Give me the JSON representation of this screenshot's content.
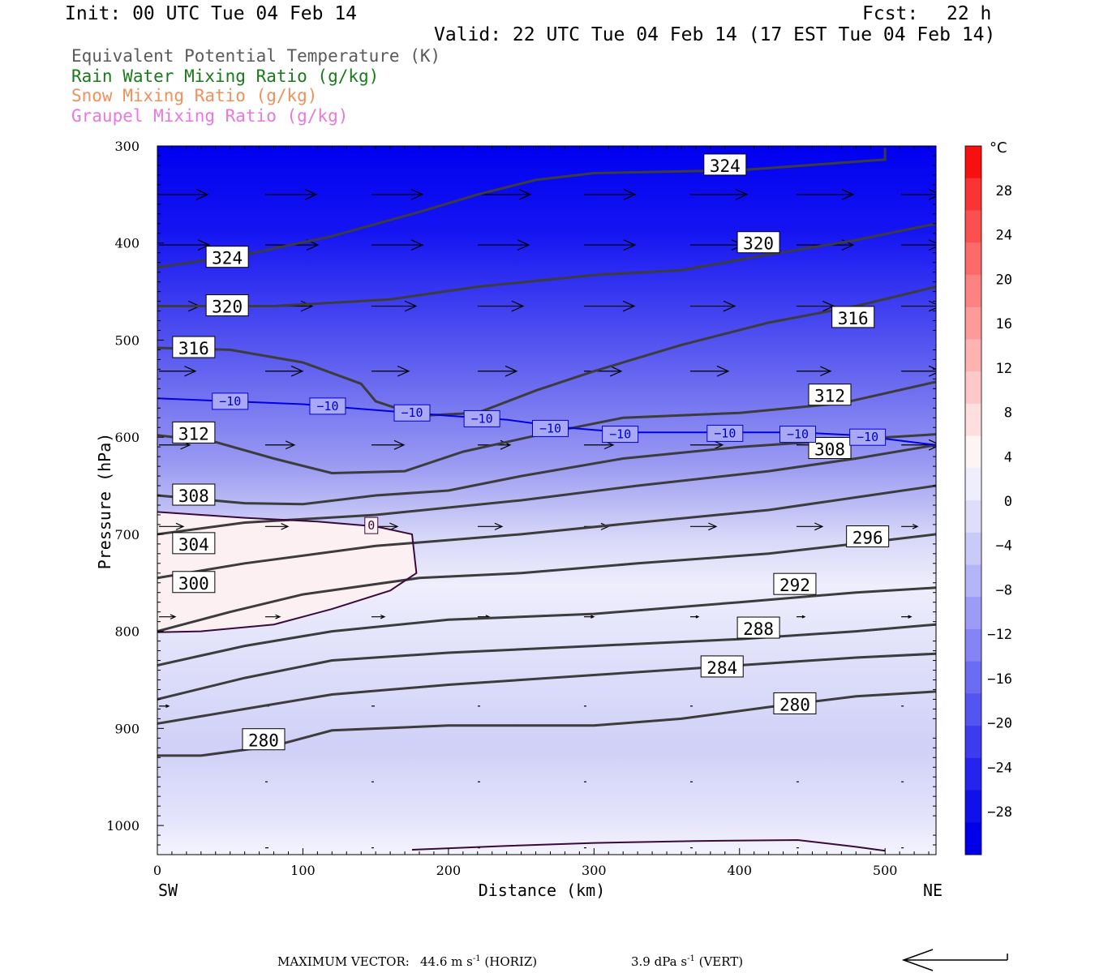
{
  "header": {
    "init": "Init: 00 UTC Tue 04 Feb 14",
    "fcst_label": "Fcst:",
    "fcst_value": "22 h",
    "valid": "Valid: 22 UTC Tue 04 Feb 14 (17 EST Tue 04 Feb 14)"
  },
  "legend": [
    {
      "text": "Equivalent Potential Temperature (K)",
      "color": "#5a5a5a"
    },
    {
      "text": "Rain Water Mixing Ratio (g/kg)",
      "color": "#1a7a1a"
    },
    {
      "text": "Snow Mixing Ratio (g/kg)",
      "color": "#f0905a"
    },
    {
      "text": "Graupel Mixing Ratio (g/kg)",
      "color": "#e878e0"
    }
  ],
  "chart_data": {
    "type": "cross-section",
    "xlabel": "Distance (km)",
    "ylabel": "Pressure (hPa)",
    "x_ticks": [
      "0",
      "100",
      "200",
      "300",
      "400",
      "500"
    ],
    "y_ticks": [
      "300",
      "400",
      "500",
      "600",
      "700",
      "800",
      "900",
      "1000"
    ],
    "xlim": [
      0,
      535
    ],
    "ylim": [
      1030,
      300
    ],
    "left_end_label": "SW",
    "right_end_label": "NE",
    "colorbar": {
      "unit": "°C",
      "labels": [
        "28",
        "24",
        "20",
        "16",
        "12",
        "8",
        "4",
        "0",
        "−4",
        "−8",
        "−12",
        "−16",
        "−20",
        "−24",
        "−28"
      ]
    },
    "theta_e_contours": [
      {
        "level": 324,
        "points": [
          [
            0,
            425
          ],
          [
            60,
            412
          ],
          [
            120,
            393
          ],
          [
            180,
            368
          ],
          [
            220,
            350
          ],
          [
            260,
            335
          ],
          [
            300,
            328
          ],
          [
            400,
            325
          ],
          [
            500,
            314
          ],
          [
            500,
            302
          ]
        ]
      },
      {
        "level": 320,
        "points": [
          [
            0,
            465
          ],
          [
            80,
            465
          ],
          [
            160,
            458
          ],
          [
            220,
            445
          ],
          [
            300,
            433
          ],
          [
            360,
            428
          ],
          [
            420,
            412
          ],
          [
            480,
            397
          ],
          [
            535,
            380
          ]
        ]
      },
      {
        "level": 316,
        "points": [
          [
            0,
            508
          ],
          [
            50,
            510
          ],
          [
            100,
            523
          ],
          [
            140,
            545
          ],
          [
            150,
            563
          ],
          [
            180,
            578
          ],
          [
            220,
            575
          ],
          [
            260,
            552
          ],
          [
            300,
            532
          ],
          [
            360,
            505
          ],
          [
            420,
            482
          ],
          [
            480,
            465
          ],
          [
            535,
            445
          ]
        ]
      },
      {
        "level": 312,
        "points": [
          [
            0,
            598
          ],
          [
            40,
            605
          ],
          [
            80,
            622
          ],
          [
            120,
            637
          ],
          [
            170,
            635
          ],
          [
            210,
            615
          ],
          [
            270,
            595
          ],
          [
            320,
            580
          ],
          [
            400,
            575
          ],
          [
            470,
            565
          ],
          [
            535,
            543
          ]
        ]
      },
      {
        "level": 308,
        "points": [
          [
            0,
            660
          ],
          [
            60,
            668
          ],
          [
            100,
            669
          ],
          [
            150,
            660
          ],
          [
            200,
            655
          ],
          [
            250,
            640
          ],
          [
            320,
            622
          ],
          [
            400,
            610
          ],
          [
            470,
            603
          ],
          [
            535,
            597
          ]
        ]
      },
      {
        "level": 304,
        "points": [
          [
            0,
            700
          ],
          [
            60,
            688
          ],
          [
            150,
            680
          ],
          [
            250,
            665
          ],
          [
            330,
            650
          ],
          [
            420,
            635
          ],
          [
            480,
            622
          ],
          [
            535,
            608
          ]
        ]
      },
      {
        "level": 300,
        "points": [
          [
            0,
            745
          ],
          [
            60,
            730
          ],
          [
            150,
            712
          ],
          [
            250,
            700
          ],
          [
            330,
            688
          ],
          [
            420,
            675
          ],
          [
            480,
            662
          ],
          [
            535,
            650
          ]
        ]
      },
      {
        "level": 296,
        "points": [
          [
            0,
            800
          ],
          [
            50,
            780
          ],
          [
            100,
            762
          ],
          [
            180,
            745
          ],
          [
            250,
            740
          ],
          [
            330,
            730
          ],
          [
            420,
            720
          ],
          [
            490,
            708
          ],
          [
            535,
            700
          ]
        ]
      },
      {
        "level": 292,
        "points": [
          [
            0,
            835
          ],
          [
            60,
            815
          ],
          [
            120,
            800
          ],
          [
            200,
            788
          ],
          [
            300,
            782
          ],
          [
            400,
            770
          ],
          [
            480,
            760
          ],
          [
            535,
            755
          ]
        ]
      },
      {
        "level": 288,
        "points": [
          [
            0,
            870
          ],
          [
            60,
            848
          ],
          [
            120,
            830
          ],
          [
            200,
            822
          ],
          [
            300,
            815
          ],
          [
            400,
            808
          ],
          [
            480,
            800
          ],
          [
            535,
            793
          ]
        ]
      },
      {
        "level": 284,
        "points": [
          [
            0,
            895
          ],
          [
            60,
            880
          ],
          [
            120,
            865
          ],
          [
            200,
            855
          ],
          [
            300,
            845
          ],
          [
            400,
            835
          ],
          [
            480,
            827
          ],
          [
            535,
            823
          ]
        ]
      },
      {
        "level": 280,
        "points": [
          [
            0,
            928
          ],
          [
            30,
            928
          ],
          [
            80,
            918
          ],
          [
            120,
            902
          ],
          [
            200,
            897
          ],
          [
            300,
            897
          ],
          [
            360,
            890
          ],
          [
            420,
            878
          ],
          [
            480,
            867
          ],
          [
            535,
            862
          ]
        ]
      }
    ],
    "theta_e_labels": [
      {
        "text": "324",
        "x": 390,
        "p": 320
      },
      {
        "text": "324",
        "x": 48,
        "p": 415
      },
      {
        "text": "320",
        "x": 413,
        "p": 400
      },
      {
        "text": "320",
        "x": 48,
        "p": 465
      },
      {
        "text": "316",
        "x": 478,
        "p": 477
      },
      {
        "text": "316",
        "x": 25,
        "p": 508
      },
      {
        "text": "312",
        "x": 462,
        "p": 557
      },
      {
        "text": "312",
        "x": 25,
        "p": 596
      },
      {
        "text": "308",
        "x": 462,
        "p": 612
      },
      {
        "text": "308",
        "x": 25,
        "p": 660
      },
      {
        "text": "304",
        "x": 25,
        "p": 710
      },
      {
        "text": "300",
        "x": 25,
        "p": 750
      },
      {
        "text": "296",
        "x": 488,
        "p": 703
      },
      {
        "text": "292",
        "x": 438,
        "p": 752
      },
      {
        "text": "288",
        "x": 413,
        "p": 797
      },
      {
        "text": "284",
        "x": 388,
        "p": 837
      },
      {
        "text": "280",
        "x": 438,
        "p": 875
      },
      {
        "text": "280",
        "x": 73,
        "p": 912
      }
    ],
    "isotherms": [
      {
        "level": -10,
        "label": "−10",
        "color": "#0000e0",
        "points": [
          [
            0,
            560
          ],
          [
            50,
            563
          ],
          [
            100,
            566
          ],
          [
            150,
            572
          ],
          [
            200,
            578
          ],
          [
            240,
            582
          ],
          [
            280,
            590
          ],
          [
            320,
            595
          ],
          [
            380,
            595
          ],
          [
            440,
            595
          ],
          [
            480,
            598
          ],
          [
            535,
            608
          ]
        ]
      },
      {
        "level": 0,
        "label": "0",
        "color": "#3a0a3a",
        "points": [
          [
            0,
            677
          ],
          [
            60,
            683
          ],
          [
            110,
            687
          ],
          [
            150,
            692
          ],
          [
            175,
            700
          ],
          [
            178,
            740
          ],
          [
            160,
            758
          ],
          [
            120,
            777
          ],
          [
            80,
            793
          ],
          [
            30,
            800
          ],
          [
            0,
            801
          ]
        ]
      }
    ],
    "isotherm_labels": [
      {
        "text": "−10",
        "x": 50,
        "p": 563
      },
      {
        "text": "−10",
        "x": 117,
        "p": 568
      },
      {
        "text": "−10",
        "x": 175,
        "p": 575
      },
      {
        "text": "−10",
        "x": 223,
        "p": 581
      },
      {
        "text": "−10",
        "x": 270,
        "p": 591
      },
      {
        "text": "−10",
        "x": 318,
        "p": 597
      },
      {
        "text": "−10",
        "x": 390,
        "p": 596
      },
      {
        "text": "−10",
        "x": 440,
        "p": 597
      },
      {
        "text": "−10",
        "x": 488,
        "p": 600
      },
      {
        "text": "0",
        "x": 147,
        "p": 691
      }
    ],
    "near_surface_line": [
      [
        175,
        1025
      ],
      [
        240,
        1021
      ],
      [
        300,
        1018
      ],
      [
        370,
        1016
      ],
      [
        440,
        1015
      ],
      [
        480,
        1022
      ],
      [
        500,
        1026
      ]
    ],
    "wind_vectors": [
      {
        "x": 0,
        "p": 350,
        "len": 60
      },
      {
        "x": 73,
        "p": 350,
        "len": 63
      },
      {
        "x": 146,
        "p": 350,
        "len": 63
      },
      {
        "x": 219,
        "p": 350,
        "len": 65
      },
      {
        "x": 292,
        "p": 350,
        "len": 63
      },
      {
        "x": 365,
        "p": 350,
        "len": 70
      },
      {
        "x": 438,
        "p": 350,
        "len": 70
      },
      {
        "x": 510,
        "p": 350,
        "len": 48
      },
      {
        "x": 0,
        "p": 402,
        "len": 62
      },
      {
        "x": 73,
        "p": 402,
        "len": 65
      },
      {
        "x": 146,
        "p": 402,
        "len": 63
      },
      {
        "x": 219,
        "p": 402,
        "len": 63
      },
      {
        "x": 292,
        "p": 402,
        "len": 63
      },
      {
        "x": 365,
        "p": 402,
        "len": 65
      },
      {
        "x": 438,
        "p": 402,
        "len": 70
      },
      {
        "x": 510,
        "p": 402,
        "len": 48
      },
      {
        "x": 0,
        "p": 465,
        "len": 50
      },
      {
        "x": 73,
        "p": 465,
        "len": 58
      },
      {
        "x": 146,
        "p": 465,
        "len": 55
      },
      {
        "x": 219,
        "p": 465,
        "len": 56
      },
      {
        "x": 292,
        "p": 465,
        "len": 62
      },
      {
        "x": 365,
        "p": 465,
        "len": 55
      },
      {
        "x": 438,
        "p": 465,
        "len": 46
      },
      {
        "x": 510,
        "p": 465,
        "len": 48
      },
      {
        "x": 0,
        "p": 532,
        "len": 45
      },
      {
        "x": 73,
        "p": 532,
        "len": 46
      },
      {
        "x": 146,
        "p": 532,
        "len": 46
      },
      {
        "x": 219,
        "p": 532,
        "len": 48
      },
      {
        "x": 292,
        "p": 532,
        "len": 46
      },
      {
        "x": 365,
        "p": 532,
        "len": 47
      },
      {
        "x": 438,
        "p": 532,
        "len": 42
      },
      {
        "x": 510,
        "p": 532,
        "len": 48
      },
      {
        "x": 0,
        "p": 608,
        "len": 38
      },
      {
        "x": 73,
        "p": 608,
        "len": 36
      },
      {
        "x": 146,
        "p": 608,
        "len": 40
      },
      {
        "x": 219,
        "p": 608,
        "len": 40
      },
      {
        "x": 292,
        "p": 608,
        "len": 36
      },
      {
        "x": 365,
        "p": 608,
        "len": 40
      },
      {
        "x": 438,
        "p": 608,
        "len": 36
      },
      {
        "x": 510,
        "p": 608,
        "len": 48
      },
      {
        "x": 0,
        "p": 692,
        "len": 30
      },
      {
        "x": 73,
        "p": 692,
        "len": 28
      },
      {
        "x": 146,
        "p": 692,
        "len": 32
      },
      {
        "x": 219,
        "p": 692,
        "len": 30
      },
      {
        "x": 292,
        "p": 692,
        "len": 30
      },
      {
        "x": 365,
        "p": 692,
        "len": 32
      },
      {
        "x": 438,
        "p": 692,
        "len": 32
      },
      {
        "x": 510,
        "p": 692,
        "len": 20
      },
      {
        "x": 0,
        "p": 785,
        "len": 20
      },
      {
        "x": 73,
        "p": 785,
        "len": 18
      },
      {
        "x": 146,
        "p": 785,
        "len": 16
      },
      {
        "x": 219,
        "p": 785,
        "len": 14
      },
      {
        "x": 292,
        "p": 785,
        "len": 12
      },
      {
        "x": 365,
        "p": 785,
        "len": 10
      },
      {
        "x": 438,
        "p": 785,
        "len": 10
      },
      {
        "x": 510,
        "p": 785,
        "len": 12
      },
      {
        "x": 0,
        "p": 877,
        "len": 12
      },
      {
        "x": 73,
        "p": 877,
        "len": 5
      },
      {
        "x": 146,
        "p": 877,
        "len": 4
      },
      {
        "x": 219,
        "p": 877,
        "len": 3
      },
      {
        "x": 292,
        "p": 877,
        "len": 3
      },
      {
        "x": 365,
        "p": 877,
        "len": 3
      },
      {
        "x": 438,
        "p": 877,
        "len": 3
      },
      {
        "x": 510,
        "p": 877,
        "len": 3
      },
      {
        "x": 73,
        "p": 955,
        "len": 3
      },
      {
        "x": 146,
        "p": 955,
        "len": 3
      },
      {
        "x": 219,
        "p": 955,
        "len": 3
      },
      {
        "x": 292,
        "p": 955,
        "len": 3
      },
      {
        "x": 365,
        "p": 955,
        "len": 3
      },
      {
        "x": 438,
        "p": 955,
        "len": 3
      },
      {
        "x": 510,
        "p": 955,
        "len": 3
      },
      {
        "x": 73,
        "p": 1023,
        "len": 4
      },
      {
        "x": 146,
        "p": 1023,
        "len": 3
      },
      {
        "x": 219,
        "p": 1023,
        "len": 3
      },
      {
        "x": 292,
        "p": 1023,
        "len": 3
      },
      {
        "x": 365,
        "p": 1023,
        "len": 3
      },
      {
        "x": 438,
        "p": 1023,
        "len": 3
      },
      {
        "x": 510,
        "p": 1023,
        "len": 3
      }
    ]
  },
  "footer": {
    "max_vector_label": "MAXIMUM VECTOR:",
    "horiz_value": "44.6 m s",
    "horiz_exp": "-1",
    "horiz_tag": "(HORIZ)",
    "vert_value": "3.9 dPa s",
    "vert_exp": "-1",
    "vert_tag": "(VERT)"
  }
}
